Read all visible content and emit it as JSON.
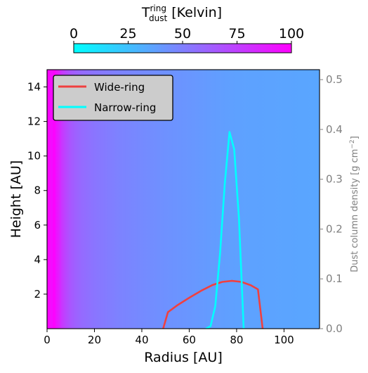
{
  "chart_data": {
    "type": "line",
    "colorbar": {
      "label_main": "T",
      "label_sup": "ring",
      "label_sub": "dust",
      "label_unit": " [Kelvin]",
      "range": [
        0,
        100
      ],
      "ticks": [
        0,
        25,
        50,
        75,
        100
      ],
      "tick_labels": [
        "0",
        "25",
        "50",
        "75",
        "100"
      ],
      "colormap": [
        "#00ffff",
        "#ff00ff"
      ]
    },
    "background_temperature_field": {
      "description_free": true,
      "x_breakpoints": [
        0,
        1,
        2,
        3,
        4,
        5,
        6,
        8,
        10,
        12,
        15,
        20,
        30,
        40,
        50,
        60,
        70,
        80,
        115
      ],
      "temperature": [
        100,
        98,
        95,
        100,
        92,
        88,
        80,
        72,
        66,
        62,
        58,
        54,
        49,
        46,
        43,
        41,
        39,
        37,
        35
      ]
    },
    "xlabel": "Radius [AU]",
    "ylabel": "Height [AU]",
    "y2label": "Dust column density [g cm",
    "y2label_sup": "−2",
    "y2label_end": "]",
    "xlim": [
      0,
      115
    ],
    "ylim": [
      0,
      15
    ],
    "y2lim": [
      0,
      0.52
    ],
    "xticks": [
      0,
      20,
      40,
      60,
      80,
      100
    ],
    "yticks": [
      2,
      4,
      6,
      8,
      10,
      12,
      14
    ],
    "y2ticks": [
      0.0,
      0.1,
      0.2,
      0.3,
      0.4,
      0.5
    ],
    "y2tick_labels": [
      "0.0",
      "0.1",
      "0.2",
      "0.3",
      "0.4",
      "0.5"
    ],
    "legend_placement": "top-left",
    "series": [
      {
        "name": "Wide-ring",
        "color": "#f04040",
        "x": [
          49,
          51,
          55,
          60,
          65,
          70,
          74,
          78,
          82,
          86,
          89,
          91
        ],
        "y": [
          0.0,
          0.033,
          0.047,
          0.062,
          0.076,
          0.088,
          0.094,
          0.096,
          0.094,
          0.087,
          0.079,
          0.0
        ]
      },
      {
        "name": "Narrow-ring",
        "color": "#00ffff",
        "x": [
          67,
          69,
          71,
          73,
          75,
          77,
          79,
          81,
          83
        ],
        "y": [
          0.0,
          0.005,
          0.045,
          0.15,
          0.29,
          0.395,
          0.36,
          0.22,
          0.0
        ]
      }
    ]
  }
}
